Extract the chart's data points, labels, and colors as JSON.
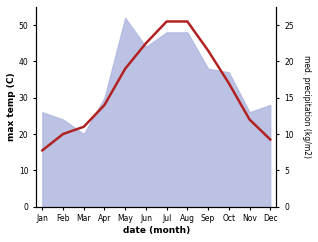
{
  "months": [
    "Jan",
    "Feb",
    "Mar",
    "Apr",
    "May",
    "Jun",
    "Jul",
    "Aug",
    "Sep",
    "Oct",
    "Nov",
    "Dec"
  ],
  "temp": [
    15.5,
    20.0,
    22.0,
    28.0,
    38.0,
    45.0,
    51.0,
    51.0,
    43.0,
    34.0,
    24.0,
    18.5
  ],
  "precip": [
    13,
    12,
    10,
    15,
    26,
    22,
    24,
    24,
    19,
    18.5,
    13,
    14
  ],
  "temp_ylim": [
    0,
    55
  ],
  "precip_ylim": [
    0,
    27.5
  ],
  "temp_yticks": [
    0,
    10,
    20,
    30,
    40,
    50
  ],
  "precip_yticks": [
    0,
    5,
    10,
    15,
    20,
    25
  ],
  "temp_color": "#b22222",
  "fill_color": "#b0b8e0",
  "xlabel": "date (month)",
  "ylabel_left": "max temp (C)",
  "ylabel_right": "med. precipitation (kg/m2)",
  "bg_color": "#ffffff",
  "line_width": 1.8
}
